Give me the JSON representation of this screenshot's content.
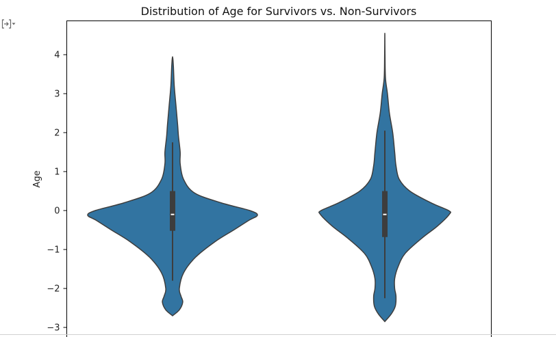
{
  "icons": {
    "output_toggle": "output-collapse-icon"
  },
  "colors": {
    "violin_fill": "#3274a1",
    "violin_edge": "#3d3d3d",
    "box": "#3d3d3d",
    "median": "#ffffff",
    "axes": "#000000"
  },
  "chart_data": {
    "type": "violin",
    "title": "Distribution of Age for Survivors vs. Non-Survivors",
    "xlabel": "",
    "ylabel": "Age",
    "ylim": [
      -3.2,
      4.9
    ],
    "yticks": [
      -3,
      -2,
      -1,
      0,
      1,
      2,
      3,
      4
    ],
    "ytick_labels": [
      "−3",
      "−2",
      "−1",
      "0",
      "1",
      "2",
      "3",
      "4"
    ],
    "grid": false,
    "legend": null,
    "categories": [
      "",
      ""
    ],
    "violins": [
      {
        "median": -0.1,
        "q1": -0.52,
        "q3": 0.5,
        "whisker_low": -1.8,
        "whisker_high": 1.75,
        "min": -2.7,
        "max": 3.95,
        "density": [
          [
            -2.7,
            0.0
          ],
          [
            -2.55,
            0.08
          ],
          [
            -2.35,
            0.12
          ],
          [
            -2.2,
            0.1
          ],
          [
            -2.0,
            0.08
          ],
          [
            -1.6,
            0.13
          ],
          [
            -1.2,
            0.27
          ],
          [
            -0.8,
            0.5
          ],
          [
            -0.5,
            0.72
          ],
          [
            -0.25,
            0.9
          ],
          [
            -0.12,
            1.0
          ],
          [
            0.0,
            0.91
          ],
          [
            0.2,
            0.57
          ],
          [
            0.45,
            0.26
          ],
          [
            0.8,
            0.13
          ],
          [
            1.2,
            0.09
          ],
          [
            1.5,
            0.09
          ],
          [
            1.9,
            0.07
          ],
          [
            2.2,
            0.06
          ],
          [
            2.7,
            0.04
          ],
          [
            3.2,
            0.02
          ],
          [
            3.7,
            0.01
          ],
          [
            3.95,
            0.0
          ]
        ]
      },
      {
        "median": -0.1,
        "q1": -0.68,
        "q3": 0.5,
        "whisker_low": -2.25,
        "whisker_high": 2.05,
        "min": -2.85,
        "max": 4.55,
        "density": [
          [
            -2.85,
            0.0
          ],
          [
            -2.65,
            0.1
          ],
          [
            -2.45,
            0.16
          ],
          [
            -2.2,
            0.17
          ],
          [
            -2.0,
            0.15
          ],
          [
            -1.75,
            0.15
          ],
          [
            -1.45,
            0.2
          ],
          [
            -1.1,
            0.31
          ],
          [
            -0.7,
            0.57
          ],
          [
            -0.4,
            0.8
          ],
          [
            -0.1,
            0.98
          ],
          [
            0.0,
            0.97
          ],
          [
            0.2,
            0.7
          ],
          [
            0.5,
            0.38
          ],
          [
            0.8,
            0.22
          ],
          [
            1.15,
            0.17
          ],
          [
            1.5,
            0.15
          ],
          [
            2.0,
            0.12
          ],
          [
            2.5,
            0.07
          ],
          [
            3.0,
            0.04
          ],
          [
            3.4,
            0.01
          ],
          [
            4.0,
            0.003
          ],
          [
            4.55,
            0.0
          ]
        ]
      }
    ]
  }
}
